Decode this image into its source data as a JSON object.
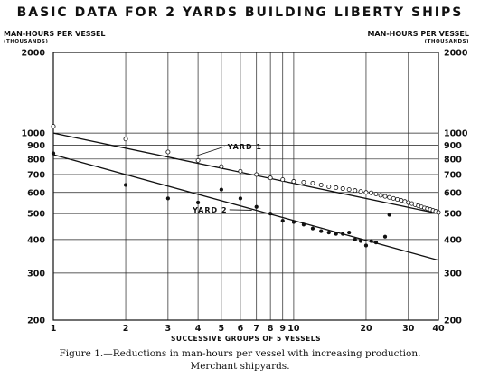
{
  "chart_data": {
    "type": "scatter",
    "title": "BASIC DATA FOR 2 YARDS BUILDING LIBERTY SHIPS",
    "ylabel_left": "MAN-HOURS PER VESSEL",
    "ylabel_left_unit": "(THOUSANDS)",
    "ylabel_right": "MAN-HOURS PER VESSEL",
    "ylabel_right_unit": "(THOUSANDS)",
    "xlabel": "SUCCESSIVE GROUPS OF 5 VESSELS",
    "x_scale": "log",
    "y_scale": "log",
    "xlim": [
      1,
      40
    ],
    "ylim": [
      200,
      2000
    ],
    "x_ticks": [
      1,
      2,
      3,
      4,
      5,
      6,
      7,
      8,
      9,
      10,
      20,
      30,
      40
    ],
    "x_tick_labels": [
      "1",
      "2",
      "3",
      "4",
      "5",
      "6",
      "7",
      "8",
      "9",
      "10",
      "20",
      "30",
      "40"
    ],
    "y_ticks": [
      200,
      300,
      400,
      500,
      600,
      700,
      800,
      900,
      1000,
      2000
    ],
    "y_tick_labels": [
      "200",
      "300",
      "400",
      "500",
      "600",
      "700",
      "800",
      "900",
      "1000",
      "2000"
    ],
    "grid": true,
    "series": [
      {
        "name": "YARD 1",
        "marker": "open-circle",
        "points": [
          [
            1,
            1060
          ],
          [
            2,
            950
          ],
          [
            3,
            850
          ],
          [
            4,
            790
          ],
          [
            5,
            750
          ],
          [
            6,
            720
          ],
          [
            7,
            700
          ],
          [
            8,
            680
          ],
          [
            9,
            670
          ],
          [
            10,
            660
          ],
          [
            11,
            655
          ],
          [
            12,
            650
          ],
          [
            13,
            640
          ],
          [
            14,
            630
          ],
          [
            15,
            625
          ],
          [
            16,
            620
          ],
          [
            17,
            615
          ],
          [
            18,
            610
          ],
          [
            19,
            605
          ],
          [
            20,
            600
          ],
          [
            21,
            598
          ],
          [
            22,
            592
          ],
          [
            23,
            585
          ],
          [
            24,
            580
          ],
          [
            25,
            575
          ],
          [
            26,
            570
          ],
          [
            27,
            565
          ],
          [
            28,
            560
          ],
          [
            29,
            555
          ],
          [
            30,
            550
          ],
          [
            31,
            545
          ],
          [
            32,
            540
          ],
          [
            33,
            535
          ],
          [
            34,
            530
          ],
          [
            35,
            525
          ],
          [
            36,
            522
          ],
          [
            37,
            518
          ],
          [
            38,
            514
          ],
          [
            39,
            510
          ],
          [
            40,
            505
          ]
        ],
        "trend": [
          [
            1,
            1000
          ],
          [
            40,
            500
          ]
        ]
      },
      {
        "name": "YARD 2",
        "marker": "filled-circle",
        "points": [
          [
            1,
            840
          ],
          [
            2,
            640
          ],
          [
            3,
            570
          ],
          [
            4,
            550
          ],
          [
            5,
            615
          ],
          [
            6,
            570
          ],
          [
            7,
            530
          ],
          [
            8,
            500
          ],
          [
            9,
            470
          ],
          [
            10,
            465
          ],
          [
            11,
            455
          ],
          [
            12,
            440
          ],
          [
            13,
            430
          ],
          [
            14,
            425
          ],
          [
            15,
            420
          ],
          [
            16,
            420
          ],
          [
            17,
            425
          ],
          [
            18,
            400
          ],
          [
            19,
            395
          ],
          [
            20,
            380
          ],
          [
            21,
            395
          ],
          [
            22,
            390
          ],
          [
            24,
            410
          ],
          [
            25,
            495
          ]
        ],
        "trend": [
          [
            1,
            830
          ],
          [
            40,
            335
          ]
        ]
      }
    ],
    "annotations": [
      {
        "text": "YARD 1",
        "series": "YARD 1"
      },
      {
        "text": "YARD 2",
        "series": "YARD 2"
      }
    ]
  },
  "caption": {
    "line1": "Figure 1.—Reductions in man-hours per vessel with increasing production.",
    "line2": "Merchant shipyards."
  }
}
